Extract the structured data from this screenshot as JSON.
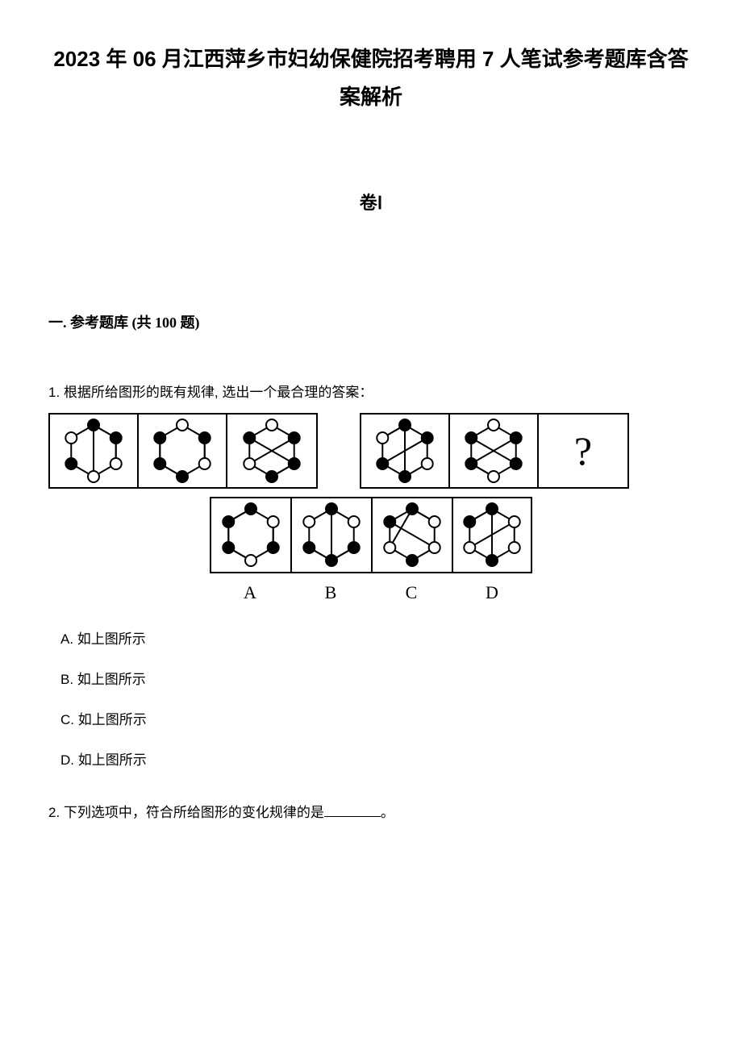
{
  "title": "2023 年 06 月江西萍乡市妇幼保健院招考聘用 7 人笔试参考题库含答案解析",
  "volume": "卷Ⅰ",
  "section_header": "一. 参考题库 (共 100 题)",
  "question1": {
    "stem": "1. 根据所给图形的既有规律, 选出一个最合理的答案：",
    "options": {
      "A": "A. 如上图所示",
      "B": "B. 如上图所示",
      "C": "C. 如上图所示",
      "D": "D. 如上图所示"
    },
    "answer_labels": [
      "A",
      "B",
      "C",
      "D"
    ],
    "qmark": "?",
    "hexagon": {
      "size": 70,
      "stroke": "#000000",
      "stroke_width": 2,
      "vertex_radius": 7
    },
    "figures_top_left": [
      {
        "vertices_filled": [
          true,
          true,
          false,
          false,
          true,
          false
        ],
        "lines": [
          [
            0,
            3
          ],
          [
            0,
            1
          ],
          [
            1,
            2
          ]
        ]
      },
      {
        "vertices_filled": [
          false,
          true,
          false,
          true,
          true,
          true
        ],
        "lines": [
          [
            5,
            4
          ],
          [
            4,
            3
          ],
          [
            1,
            2
          ]
        ]
      },
      {
        "vertices_filled": [
          false,
          true,
          true,
          true,
          false,
          true
        ],
        "lines": [
          [
            5,
            2
          ],
          [
            1,
            4
          ],
          [
            2,
            3
          ]
        ]
      }
    ],
    "figures_top_right": [
      {
        "vertices_filled": [
          true,
          true,
          false,
          true,
          true,
          false
        ],
        "lines": [
          [
            0,
            3
          ],
          [
            1,
            4
          ],
          [
            0,
            5
          ]
        ]
      },
      {
        "vertices_filled": [
          false,
          true,
          true,
          false,
          true,
          true
        ],
        "lines": [
          [
            1,
            4
          ],
          [
            2,
            5
          ],
          [
            4,
            3
          ]
        ]
      }
    ],
    "answer_figures": [
      {
        "vertices_filled": [
          true,
          false,
          true,
          false,
          true,
          true
        ],
        "lines": [
          [
            0,
            5
          ],
          [
            5,
            4
          ],
          [
            4,
            3
          ],
          [
            2,
            1
          ]
        ]
      },
      {
        "vertices_filled": [
          true,
          false,
          true,
          true,
          true,
          false
        ],
        "lines": [
          [
            0,
            3
          ],
          [
            3,
            4
          ],
          [
            2,
            3
          ]
        ]
      },
      {
        "vertices_filled": [
          true,
          false,
          false,
          true,
          false,
          true
        ],
        "lines": [
          [
            0,
            1
          ],
          [
            0,
            4
          ],
          [
            5,
            2
          ]
        ]
      },
      {
        "vertices_filled": [
          true,
          false,
          false,
          true,
          false,
          true
        ],
        "lines": [
          [
            0,
            5
          ],
          [
            0,
            3
          ],
          [
            1,
            4
          ]
        ]
      }
    ]
  },
  "question2": {
    "stem_pre": "2. 下列选项中，符合所给图形的变化规律的是",
    "stem_post": "。"
  }
}
